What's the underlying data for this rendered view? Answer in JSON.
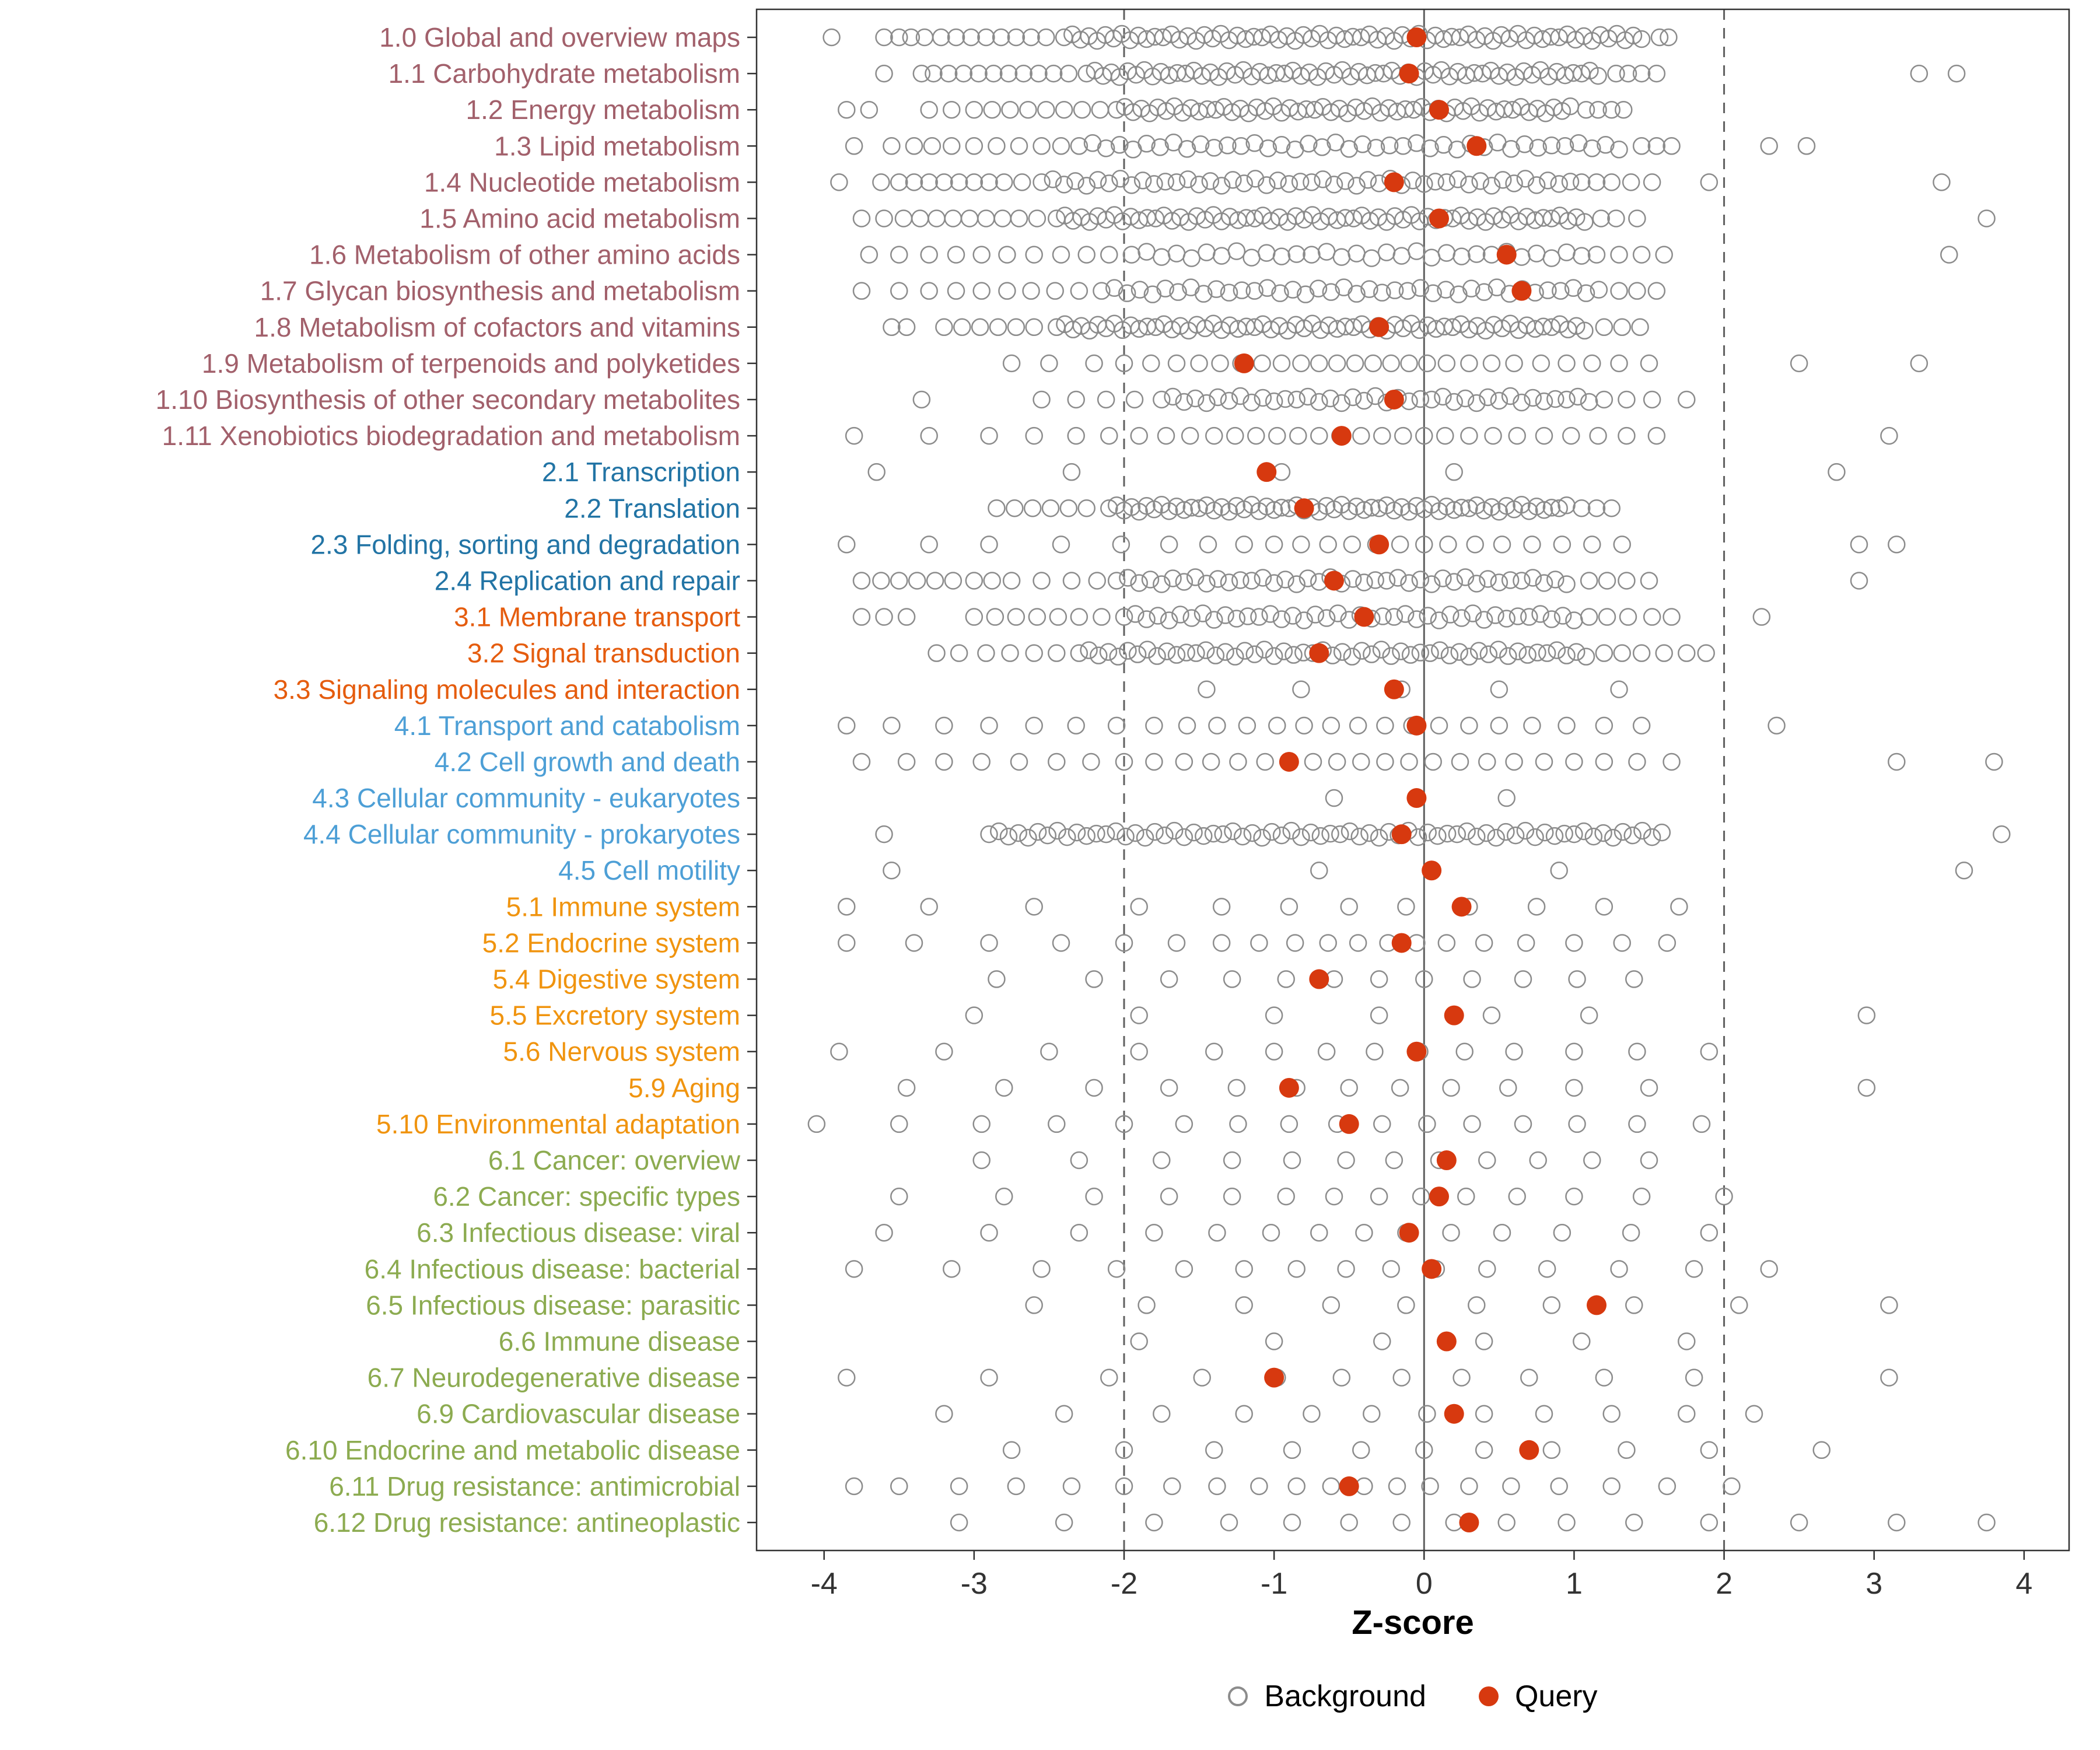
{
  "chart_data": {
    "type": "scatter",
    "subtype": "strip-plot",
    "xlabel": "Z-score",
    "xlim": [
      -4.45,
      4.3
    ],
    "x_ticks": [
      -4,
      -3,
      -2,
      -1,
      0,
      1,
      2,
      3,
      4
    ],
    "x_tick_labels": [
      "-4",
      "-3",
      "-2",
      "-1",
      "0",
      "1",
      "2",
      "3",
      "4"
    ],
    "reference_lines": {
      "solid": [
        0
      ],
      "dashed": [
        -2,
        2
      ]
    },
    "legend": [
      {
        "label": "Background",
        "marker": "open"
      },
      {
        "label": "Query",
        "marker": "filled"
      }
    ],
    "colors": {
      "query": "#d7390f",
      "background_stroke": "#8c8c8c",
      "ref_line": "#5f5f5f",
      "axis_text": "#333333",
      "groups": {
        "g1": "#a2606b",
        "g2": "#2274a5",
        "g3": "#e55c0e",
        "g4": "#4d9fd6",
        "g5": "#f0940f",
        "g6": "#8cab50"
      }
    },
    "categories": [
      {
        "label": "1.0 Global and overview maps",
        "group": "g1",
        "query": -0.05,
        "bg_bands": [
          [
            -2.4,
            1.5,
            0.055
          ]
        ],
        "bg_points": [
          -3.95,
          -3.6,
          -3.5,
          -3.42,
          -3.33,
          -3.22,
          -3.12,
          -3.02,
          -2.92,
          -2.82,
          -2.72,
          -2.62,
          -2.52,
          1.57,
          1.63
        ]
      },
      {
        "label": "1.1 Carbohydrate metabolism",
        "group": "g1",
        "query": -0.1,
        "bg_bands": [
          [
            -2.25,
            1.2,
            0.055
          ]
        ],
        "bg_points": [
          -3.6,
          -3.35,
          -3.27,
          -3.17,
          -3.07,
          -2.97,
          -2.87,
          -2.77,
          -2.67,
          -2.57,
          -2.47,
          -2.37,
          1.28,
          1.36,
          1.45,
          1.55,
          3.3,
          3.55
        ]
      },
      {
        "label": "1.2 Energy metabolism",
        "group": "g1",
        "query": 0.1,
        "bg_bands": [
          [
            -2.05,
            1.0,
            0.055
          ]
        ],
        "bg_points": [
          -3.85,
          -3.7,
          -3.3,
          -3.15,
          -3.0,
          -2.88,
          -2.76,
          -2.64,
          -2.52,
          -2.4,
          -2.28,
          -2.16,
          1.08,
          1.16,
          1.25,
          1.33
        ]
      },
      {
        "label": "1.3 Lipid metabolism",
        "group": "g1",
        "query": 0.35,
        "bg_bands": [
          [
            -2.3,
            1.35,
            0.09
          ]
        ],
        "bg_points": [
          -3.8,
          -3.55,
          -3.4,
          -3.28,
          -3.15,
          -3.0,
          -2.85,
          -2.7,
          -2.55,
          -2.42,
          1.45,
          1.55,
          1.65,
          2.3,
          2.55
        ]
      },
      {
        "label": "1.4 Nucleotide metabolism",
        "group": "g1",
        "query": -0.2,
        "bg_bands": [
          [
            -2.55,
            1.05,
            0.075
          ]
        ],
        "bg_points": [
          -3.9,
          -3.62,
          -3.5,
          -3.4,
          -3.3,
          -3.2,
          -3.1,
          -3.0,
          -2.9,
          -2.8,
          -2.68,
          1.15,
          1.25,
          1.38,
          1.52,
          1.9,
          3.45
        ]
      },
      {
        "label": "1.5 Amino acid metabolism",
        "group": "g1",
        "query": 0.1,
        "bg_bands": [
          [
            -2.45,
            1.1,
            0.055
          ]
        ],
        "bg_points": [
          -3.75,
          -3.6,
          -3.47,
          -3.36,
          -3.25,
          -3.14,
          -3.03,
          -2.92,
          -2.81,
          -2.7,
          -2.58,
          1.18,
          1.28,
          1.42,
          3.75
        ]
      },
      {
        "label": "1.6 Metabolism of other amino acids",
        "group": "g1",
        "query": 0.55,
        "bg_bands": [
          [
            -1.95,
            1.05,
            0.1
          ]
        ],
        "bg_points": [
          -3.7,
          -3.5,
          -3.3,
          -3.12,
          -2.95,
          -2.78,
          -2.6,
          -2.42,
          -2.25,
          -2.1,
          1.15,
          1.3,
          1.45,
          1.6,
          3.5
        ]
      },
      {
        "label": "1.7 Glycan biosynthesis and metabolism",
        "group": "g1",
        "query": 0.65,
        "bg_bands": [
          [
            -2.15,
            1.2,
            0.085
          ]
        ],
        "bg_points": [
          -3.75,
          -3.5,
          -3.3,
          -3.12,
          -2.95,
          -2.78,
          -2.62,
          -2.46,
          -2.3,
          1.3,
          1.42,
          1.55
        ]
      },
      {
        "label": "1.8 Metabolism of cofactors and vitamins",
        "group": "g1",
        "query": -0.3,
        "bg_bands": [
          [
            -2.45,
            1.1,
            0.055
          ]
        ],
        "bg_points": [
          -3.55,
          -3.45,
          -3.2,
          -3.08,
          -2.96,
          -2.84,
          -2.72,
          -2.6,
          1.2,
          1.32,
          1.44
        ]
      },
      {
        "label": "1.9 Metabolism of terpenoids and polyketides",
        "group": "g1",
        "query": -1.2,
        "bg_bands": [],
        "bg_points": [
          -2.75,
          -2.5,
          -2.2,
          -2.0,
          -1.82,
          -1.65,
          -1.5,
          -1.36,
          -1.22,
          -1.08,
          -0.95,
          -0.82,
          -0.7,
          -0.58,
          -0.46,
          -0.34,
          -0.22,
          -0.1,
          0.02,
          0.15,
          0.3,
          0.45,
          0.6,
          0.78,
          0.95,
          1.12,
          1.3,
          1.5,
          2.5,
          3.3
        ]
      },
      {
        "label": "1.10 Biosynthesis of other secondary metabolites",
        "group": "g1",
        "query": -0.2,
        "bg_bands": [
          [
            -1.75,
            1.1,
            0.075
          ]
        ],
        "bg_points": [
          -3.35,
          -2.55,
          -2.32,
          -2.12,
          -1.93,
          1.2,
          1.35,
          1.52,
          1.75
        ]
      },
      {
        "label": "1.11 Xenobiotics biodegradation and metabolism",
        "group": "g1",
        "query": -0.55,
        "bg_bands": [],
        "bg_points": [
          -3.8,
          -3.3,
          -2.9,
          -2.6,
          -2.32,
          -2.1,
          -1.9,
          -1.72,
          -1.56,
          -1.4,
          -1.26,
          -1.12,
          -0.98,
          -0.84,
          -0.7,
          -0.56,
          -0.42,
          -0.28,
          -0.14,
          0.0,
          0.14,
          0.3,
          0.46,
          0.62,
          0.8,
          0.98,
          1.16,
          1.35,
          1.55,
          3.1
        ]
      },
      {
        "label": "2.1 Transcription",
        "group": "g2",
        "query": -1.05,
        "bg_bands": [],
        "bg_points": [
          -3.65,
          -2.35,
          -0.95,
          0.2,
          2.75
        ]
      },
      {
        "label": "2.2 Translation",
        "group": "g2",
        "query": -0.8,
        "bg_bands": [
          [
            -2.1,
            0.95,
            0.05
          ]
        ],
        "bg_points": [
          -2.85,
          -2.73,
          -2.61,
          -2.49,
          -2.37,
          -2.25,
          1.05,
          1.15,
          1.25
        ]
      },
      {
        "label": "2.3 Folding, sorting and degradation",
        "group": "g2",
        "query": -0.3,
        "bg_bands": [],
        "bg_points": [
          -3.85,
          -3.3,
          -2.9,
          -2.42,
          -2.02,
          -1.7,
          -1.44,
          -1.2,
          -1.0,
          -0.82,
          -0.64,
          -0.48,
          -0.32,
          -0.16,
          0.0,
          0.16,
          0.34,
          0.52,
          0.72,
          0.92,
          1.12,
          1.32,
          2.9,
          3.15
        ]
      },
      {
        "label": "2.4 Replication and repair",
        "group": "g2",
        "query": -0.6,
        "bg_bands": [
          [
            -2.05,
            1.0,
            0.075
          ]
        ],
        "bg_points": [
          -3.75,
          -3.62,
          -3.5,
          -3.38,
          -3.26,
          -3.14,
          -3.0,
          -2.88,
          -2.75,
          -2.55,
          -2.35,
          -2.18,
          1.1,
          1.22,
          1.35,
          1.5,
          2.9
        ]
      },
      {
        "label": "3.1 Membrane transport",
        "group": "g3",
        "query": -0.4,
        "bg_bands": [
          [
            -2.0,
            1.0,
            0.075
          ]
        ],
        "bg_points": [
          -3.75,
          -3.6,
          -3.45,
          -3.0,
          -2.86,
          -2.72,
          -2.58,
          -2.44,
          -2.3,
          -2.15,
          1.1,
          1.22,
          1.36,
          1.52,
          1.65,
          2.25
        ]
      },
      {
        "label": "3.2 Signal transduction",
        "group": "g3",
        "query": -0.7,
        "bg_bands": [
          [
            -2.3,
            1.1,
            0.065
          ]
        ],
        "bg_points": [
          -3.25,
          -3.1,
          -2.92,
          -2.76,
          -2.6,
          -2.45,
          1.2,
          1.32,
          1.45,
          1.6,
          1.75,
          1.88
        ]
      },
      {
        "label": "3.3 Signaling molecules and interaction",
        "group": "g3",
        "query": -0.2,
        "bg_bands": [],
        "bg_points": [
          -1.45,
          -0.82,
          -0.15,
          0.5,
          1.3
        ]
      },
      {
        "label": "4.1 Transport and catabolism",
        "group": "g4",
        "query": -0.05,
        "bg_bands": [],
        "bg_points": [
          -3.85,
          -3.55,
          -3.2,
          -2.9,
          -2.6,
          -2.32,
          -2.05,
          -1.8,
          -1.58,
          -1.38,
          -1.18,
          -0.98,
          -0.8,
          -0.62,
          -0.44,
          -0.26,
          -0.08,
          0.1,
          0.3,
          0.5,
          0.72,
          0.95,
          1.2,
          1.45,
          2.35
        ]
      },
      {
        "label": "4.2 Cell growth and death",
        "group": "g4",
        "query": -0.9,
        "bg_bands": [],
        "bg_points": [
          -3.75,
          -3.45,
          -3.2,
          -2.95,
          -2.7,
          -2.45,
          -2.22,
          -2.0,
          -1.8,
          -1.6,
          -1.42,
          -1.24,
          -1.06,
          -0.9,
          -0.74,
          -0.58,
          -0.42,
          -0.26,
          -0.1,
          0.06,
          0.24,
          0.42,
          0.6,
          0.8,
          1.0,
          1.2,
          1.42,
          1.65,
          3.15,
          3.8
        ]
      },
      {
        "label": "4.3 Cellular community - eukaryotes",
        "group": "g4",
        "query": -0.05,
        "bg_bands": [],
        "bg_points": [
          -0.6,
          0.55
        ]
      },
      {
        "label": "4.4 Cellular community - prokaryotes",
        "group": "g4",
        "query": -0.15,
        "bg_bands": [
          [
            -2.9,
            1.6,
            0.065
          ]
        ],
        "bg_points": [
          -3.6,
          3.85
        ]
      },
      {
        "label": "4.5 Cell motility",
        "group": "g4",
        "query": 0.05,
        "bg_bands": [],
        "bg_points": [
          -3.55,
          -0.7,
          0.9,
          3.6
        ]
      },
      {
        "label": "5.1 Immune system",
        "group": "g5",
        "query": 0.25,
        "bg_bands": [],
        "bg_points": [
          -3.85,
          -3.3,
          -2.6,
          -1.9,
          -1.35,
          -0.9,
          -0.5,
          -0.12,
          0.3,
          0.75,
          1.2,
          1.7
        ]
      },
      {
        "label": "5.2 Endocrine system",
        "group": "g5",
        "query": -0.15,
        "bg_bands": [],
        "bg_points": [
          -3.85,
          -3.4,
          -2.9,
          -2.42,
          -2.0,
          -1.65,
          -1.35,
          -1.1,
          -0.86,
          -0.64,
          -0.44,
          -0.24,
          -0.05,
          0.15,
          0.4,
          0.68,
          1.0,
          1.32,
          1.62
        ]
      },
      {
        "label": "5.4 Digestive system",
        "group": "g5",
        "query": -0.7,
        "bg_bands": [],
        "bg_points": [
          -2.85,
          -2.2,
          -1.7,
          -1.28,
          -0.92,
          -0.6,
          -0.3,
          0.0,
          0.32,
          0.66,
          1.02,
          1.4
        ]
      },
      {
        "label": "5.5 Excretory system",
        "group": "g5",
        "query": 0.2,
        "bg_bands": [],
        "bg_points": [
          -3.0,
          -1.9,
          -1.0,
          -0.3,
          0.45,
          1.1,
          2.95
        ]
      },
      {
        "label": "5.6 Nervous system",
        "group": "g5",
        "query": -0.05,
        "bg_bands": [],
        "bg_points": [
          -3.9,
          -3.2,
          -2.5,
          -1.9,
          -1.4,
          -1.0,
          -0.65,
          -0.33,
          -0.03,
          0.27,
          0.6,
          1.0,
          1.42,
          1.9
        ]
      },
      {
        "label": "5.9 Aging",
        "group": "g5",
        "query": -0.9,
        "bg_bands": [],
        "bg_points": [
          -3.45,
          -2.8,
          -2.2,
          -1.7,
          -1.25,
          -0.85,
          -0.5,
          -0.16,
          0.18,
          0.56,
          1.0,
          1.5,
          2.95
        ]
      },
      {
        "label": "5.10 Environmental adaptation",
        "group": "g5",
        "query": -0.5,
        "bg_bands": [],
        "bg_points": [
          -4.05,
          -3.5,
          -2.95,
          -2.45,
          -2.0,
          -1.6,
          -1.24,
          -0.9,
          -0.58,
          -0.28,
          0.02,
          0.32,
          0.66,
          1.02,
          1.42,
          1.85
        ]
      },
      {
        "label": "6.1 Cancer: overview",
        "group": "g6",
        "query": 0.15,
        "bg_bands": [],
        "bg_points": [
          -2.95,
          -2.3,
          -1.75,
          -1.28,
          -0.88,
          -0.52,
          -0.2,
          0.1,
          0.42,
          0.76,
          1.12,
          1.5
        ]
      },
      {
        "label": "6.2 Cancer: specific types",
        "group": "g6",
        "query": 0.1,
        "bg_bands": [],
        "bg_points": [
          -3.5,
          -2.8,
          -2.2,
          -1.7,
          -1.28,
          -0.92,
          -0.6,
          -0.3,
          -0.02,
          0.28,
          0.62,
          1.0,
          1.45,
          2.0
        ]
      },
      {
        "label": "6.3 Infectious disease: viral",
        "group": "g6",
        "query": -0.1,
        "bg_bands": [],
        "bg_points": [
          -3.6,
          -2.9,
          -2.3,
          -1.8,
          -1.38,
          -1.02,
          -0.7,
          -0.4,
          -0.12,
          0.18,
          0.52,
          0.92,
          1.38,
          1.9
        ]
      },
      {
        "label": "6.4 Infectious disease: bacterial",
        "group": "g6",
        "query": 0.05,
        "bg_bands": [],
        "bg_points": [
          -3.8,
          -3.15,
          -2.55,
          -2.05,
          -1.6,
          -1.2,
          -0.85,
          -0.52,
          -0.22,
          0.08,
          0.42,
          0.82,
          1.3,
          1.8,
          2.3
        ]
      },
      {
        "label": "6.5 Infectious disease: parasitic",
        "group": "g6",
        "query": 1.15,
        "bg_bands": [],
        "bg_points": [
          -2.6,
          -1.85,
          -1.2,
          -0.62,
          -0.12,
          0.35,
          0.85,
          1.4,
          2.1,
          3.1
        ]
      },
      {
        "label": "6.6 Immune disease",
        "group": "g6",
        "query": 0.15,
        "bg_bands": [],
        "bg_points": [
          -1.9,
          -1.0,
          -0.28,
          0.4,
          1.05,
          1.75
        ]
      },
      {
        "label": "6.7 Neurodegenerative disease",
        "group": "g6",
        "query": -1.0,
        "bg_bands": [],
        "bg_points": [
          -3.85,
          -2.9,
          -2.1,
          -1.48,
          -0.98,
          -0.55,
          -0.15,
          0.25,
          0.7,
          1.2,
          1.8,
          3.1
        ]
      },
      {
        "label": "6.9 Cardiovascular disease",
        "group": "g6",
        "query": 0.2,
        "bg_bands": [],
        "bg_points": [
          -3.2,
          -2.4,
          -1.75,
          -1.2,
          -0.75,
          -0.35,
          0.02,
          0.4,
          0.8,
          1.25,
          1.75,
          2.2
        ]
      },
      {
        "label": "6.10 Endocrine and metabolic disease",
        "group": "g6",
        "query": 0.7,
        "bg_bands": [],
        "bg_points": [
          -2.75,
          -2.0,
          -1.4,
          -0.88,
          -0.42,
          0.0,
          0.4,
          0.85,
          1.35,
          1.9,
          2.65
        ]
      },
      {
        "label": "6.11 Drug resistance: antimicrobial",
        "group": "g6",
        "query": -0.5,
        "bg_bands": [],
        "bg_points": [
          -3.8,
          -3.5,
          -3.1,
          -2.72,
          -2.35,
          -2.0,
          -1.68,
          -1.38,
          -1.1,
          -0.85,
          -0.62,
          -0.4,
          -0.18,
          0.04,
          0.3,
          0.58,
          0.9,
          1.25,
          1.62,
          2.05
        ]
      },
      {
        "label": "6.12 Drug resistance: antineoplastic",
        "group": "g6",
        "query": 0.3,
        "bg_bands": [],
        "bg_points": [
          -3.1,
          -2.4,
          -1.8,
          -1.3,
          -0.88,
          -0.5,
          -0.15,
          0.2,
          0.55,
          0.95,
          1.4,
          1.9,
          2.5,
          3.15,
          3.75
        ]
      }
    ]
  }
}
